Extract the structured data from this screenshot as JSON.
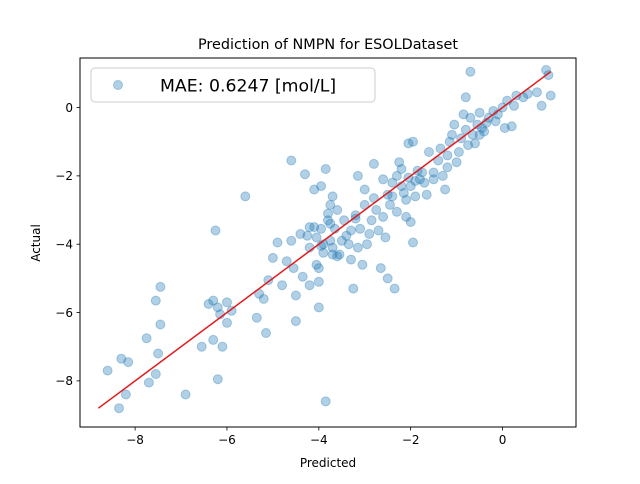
{
  "chart_data": {
    "type": "scatter",
    "title": "Prediction of NMPN for ESOLDataset",
    "xlabel": "Predicted",
    "ylabel": "Actual",
    "xlim": [
      -9.2,
      1.6
    ],
    "ylim": [
      -9.35,
      1.45
    ],
    "x_ticks": [
      -8,
      -6,
      -4,
      -2,
      0
    ],
    "y_ticks": [
      -8,
      -6,
      -4,
      -2,
      0
    ],
    "x_tick_labels": [
      "−8",
      "−6",
      "−4",
      "−2",
      "0"
    ],
    "y_tick_labels": [
      "−8",
      "−6",
      "−4",
      "−2",
      "0"
    ],
    "grid": false,
    "legend": {
      "placement": "top-left",
      "label": "MAE: 0.6247 [mol/L]"
    },
    "series": [
      {
        "name": "MAE: 0.6247 [mol/L]",
        "color": "#1f77b4",
        "alpha": 0.35,
        "points": [
          [
            -8.6,
            -7.7
          ],
          [
            -8.35,
            -8.8
          ],
          [
            -8.3,
            -7.35
          ],
          [
            -8.2,
            -8.4
          ],
          [
            -8.15,
            -7.45
          ],
          [
            -7.75,
            -6.75
          ],
          [
            -7.7,
            -8.05
          ],
          [
            -7.55,
            -5.65
          ],
          [
            -7.55,
            -7.8
          ],
          [
            -7.5,
            -7.2
          ],
          [
            -7.45,
            -5.25
          ],
          [
            -7.45,
            -6.35
          ],
          [
            -6.9,
            -8.4
          ],
          [
            -6.55,
            -7.0
          ],
          [
            -6.4,
            -5.75
          ],
          [
            -6.3,
            -6.8
          ],
          [
            -6.3,
            -5.65
          ],
          [
            -6.25,
            -3.6
          ],
          [
            -6.2,
            -7.95
          ],
          [
            -6.2,
            -5.85
          ],
          [
            -6.15,
            -6.05
          ],
          [
            -6.1,
            -7.0
          ],
          [
            -6.0,
            -6.3
          ],
          [
            -6.0,
            -5.7
          ],
          [
            -5.9,
            -5.95
          ],
          [
            -5.6,
            -2.6
          ],
          [
            -5.35,
            -6.15
          ],
          [
            -5.3,
            -5.45
          ],
          [
            -5.2,
            -5.6
          ],
          [
            -5.15,
            -6.6
          ],
          [
            -5.1,
            -5.05
          ],
          [
            -5.0,
            -4.4
          ],
          [
            -4.9,
            -3.95
          ],
          [
            -4.8,
            -5.2
          ],
          [
            -4.7,
            -4.5
          ],
          [
            -4.6,
            -3.9
          ],
          [
            -4.6,
            -1.55
          ],
          [
            -4.55,
            -4.7
          ],
          [
            -4.5,
            -5.5
          ],
          [
            -4.5,
            -6.25
          ],
          [
            -4.4,
            -3.7
          ],
          [
            -4.35,
            -4.95
          ],
          [
            -4.3,
            -1.95
          ],
          [
            -4.25,
            -3.75
          ],
          [
            -4.2,
            -3.5
          ],
          [
            -4.2,
            -4.1
          ],
          [
            -4.2,
            -5.2
          ],
          [
            -4.1,
            -2.4
          ],
          [
            -4.1,
            -3.5
          ],
          [
            -4.05,
            -3.8
          ],
          [
            -4.05,
            -4.6
          ],
          [
            -4.0,
            -4.7
          ],
          [
            -4.0,
            -5.1
          ],
          [
            -4.0,
            -5.85
          ],
          [
            -3.95,
            -2.3
          ],
          [
            -3.95,
            -3.55
          ],
          [
            -3.95,
            -4.05
          ],
          [
            -3.9,
            -4.25
          ],
          [
            -3.9,
            -4.0
          ],
          [
            -3.85,
            -8.6
          ],
          [
            -3.85,
            -1.8
          ],
          [
            -3.8,
            -3.1
          ],
          [
            -3.8,
            -3.3
          ],
          [
            -3.75,
            -2.85
          ],
          [
            -3.75,
            -3.4
          ],
          [
            -3.75,
            -3.9
          ],
          [
            -3.7,
            -2.6
          ],
          [
            -3.7,
            -4.1
          ],
          [
            -3.7,
            -4.3
          ],
          [
            -3.65,
            -3.55
          ],
          [
            -3.6,
            -3.0
          ],
          [
            -3.6,
            -4.35
          ],
          [
            -3.55,
            -4.3
          ],
          [
            -3.5,
            -3.9
          ],
          [
            -3.45,
            -3.3
          ],
          [
            -3.4,
            -3.75
          ],
          [
            -3.35,
            -4.0
          ],
          [
            -3.3,
            -3.6
          ],
          [
            -3.3,
            -4.45
          ],
          [
            -3.25,
            -5.3
          ],
          [
            -3.2,
            -3.25
          ],
          [
            -3.2,
            -3.15
          ],
          [
            -3.15,
            -2.0
          ],
          [
            -3.15,
            -4.1
          ],
          [
            -3.1,
            -3.55
          ],
          [
            -3.05,
            -4.6
          ],
          [
            -3.0,
            -2.4
          ],
          [
            -3.0,
            -2.85
          ],
          [
            -2.95,
            -4.0
          ],
          [
            -2.9,
            -3.7
          ],
          [
            -2.85,
            -3.3
          ],
          [
            -2.8,
            -1.65
          ],
          [
            -2.8,
            -2.65
          ],
          [
            -2.75,
            -3.0
          ],
          [
            -2.7,
            -3.6
          ],
          [
            -2.65,
            -4.7
          ],
          [
            -2.6,
            -3.2
          ],
          [
            -2.6,
            -2.1
          ],
          [
            -2.55,
            -3.8
          ],
          [
            -2.5,
            -2.55
          ],
          [
            -2.5,
            -5.0
          ],
          [
            -2.45,
            -2.85
          ],
          [
            -2.4,
            -2.2
          ],
          [
            -2.4,
            -2.6
          ],
          [
            -2.35,
            -5.3
          ],
          [
            -2.3,
            -2.0
          ],
          [
            -2.3,
            -3.05
          ],
          [
            -2.25,
            -1.6
          ],
          [
            -2.2,
            -2.3
          ],
          [
            -2.2,
            -1.8
          ],
          [
            -2.15,
            -2.5
          ],
          [
            -2.1,
            -3.2
          ],
          [
            -2.1,
            -2.7
          ],
          [
            -2.05,
            -1.05
          ],
          [
            -2.05,
            -2.05
          ],
          [
            -2.0,
            -3.35
          ],
          [
            -2.0,
            -2.3
          ],
          [
            -1.95,
            -1.0
          ],
          [
            -1.95,
            -3.95
          ],
          [
            -1.9,
            -2.6
          ],
          [
            -1.9,
            -2.15
          ],
          [
            -1.85,
            -1.85
          ],
          [
            -1.8,
            -2.1
          ],
          [
            -1.75,
            -1.9
          ],
          [
            -1.7,
            -2.2
          ],
          [
            -1.65,
            -2.55
          ],
          [
            -1.6,
            -1.3
          ],
          [
            -1.5,
            -1.9
          ],
          [
            -1.5,
            -2.1
          ],
          [
            -1.4,
            -1.55
          ],
          [
            -1.35,
            -1.2
          ],
          [
            -1.3,
            -2.0
          ],
          [
            -1.25,
            -2.4
          ],
          [
            -1.2,
            -1.4
          ],
          [
            -1.2,
            -1.75
          ],
          [
            -1.15,
            -1.0
          ],
          [
            -1.1,
            -0.8
          ],
          [
            -1.05,
            -0.5
          ],
          [
            -1.0,
            -1.6
          ],
          [
            -0.95,
            -1.3
          ],
          [
            -0.9,
            -0.9
          ],
          [
            -0.85,
            -0.2
          ],
          [
            -0.8,
            -0.65
          ],
          [
            -0.75,
            -1.1
          ],
          [
            -0.7,
            -0.3
          ],
          [
            -0.65,
            -0.8
          ],
          [
            -0.6,
            -1.05
          ],
          [
            -0.55,
            -0.5
          ],
          [
            -0.5,
            -0.8
          ],
          [
            -0.5,
            -0.15
          ],
          [
            -0.45,
            -0.6
          ],
          [
            -0.4,
            -0.7
          ],
          [
            -0.35,
            -0.45
          ],
          [
            -0.3,
            -0.3
          ],
          [
            -0.2,
            -0.1
          ],
          [
            -0.15,
            -0.4
          ],
          [
            -0.1,
            -0.2
          ],
          [
            0.0,
            0.0
          ],
          [
            0.05,
            -0.6
          ],
          [
            0.1,
            0.2
          ],
          [
            0.2,
            -0.55
          ],
          [
            0.25,
            0.05
          ],
          [
            0.3,
            0.35
          ],
          [
            0.45,
            0.3
          ],
          [
            0.55,
            0.4
          ],
          [
            0.75,
            0.45
          ],
          [
            0.85,
            0.05
          ],
          [
            0.95,
            1.1
          ],
          [
            1.0,
            0.95
          ],
          [
            1.05,
            0.35
          ],
          [
            -0.7,
            1.05
          ],
          [
            -0.8,
            0.3
          ]
        ]
      }
    ],
    "fit_line": {
      "color": "#e41a1c",
      "x": [
        -8.8,
        1.05
      ],
      "y": [
        -8.8,
        1.05
      ]
    }
  }
}
